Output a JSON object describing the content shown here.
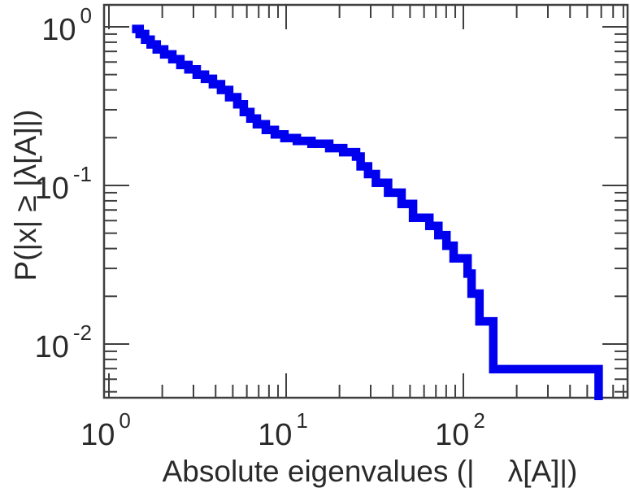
{
  "chart_data": {
    "type": "line",
    "subtype": "empirical-ccdf-step",
    "title": "",
    "xlabel": "Absolute eigenvalues (|    λ[A]|)",
    "ylabel": "P(|x| ≥ |λ[A]|)",
    "xscale": "log",
    "yscale": "log",
    "xlim": [
      0.94,
      852
    ],
    "ylim": [
      0.0047,
      1.41
    ],
    "grid": false,
    "legend": null,
    "background": "#ffffff",
    "line_color": "#0000ee",
    "line_width": 10.5,
    "axis_color": "#3f3f3f",
    "text_color": "#2a2a2a",
    "x_major_ticks": [
      {
        "value": 1,
        "base": "10",
        "exp": "0"
      },
      {
        "value": 10,
        "base": "10",
        "exp": "1"
      },
      {
        "value": 100,
        "base": "10",
        "exp": "2"
      }
    ],
    "x_minor_ticks": [
      2,
      3,
      4,
      5,
      6,
      7,
      8,
      9,
      20,
      30,
      40,
      50,
      60,
      70,
      80,
      90,
      200,
      300,
      400,
      500,
      600,
      700,
      800
    ],
    "y_major_ticks": [
      {
        "value": 1,
        "base": "10",
        "exp": "0"
      },
      {
        "value": 0.1,
        "base": "10",
        "exp": "-1"
      },
      {
        "value": 0.01,
        "base": "10",
        "exp": "-2"
      }
    ],
    "y_minor_ticks": [
      0.9,
      0.8,
      0.7,
      0.6,
      0.5,
      0.4,
      0.3,
      0.2,
      0.09,
      0.08,
      0.07,
      0.06,
      0.05,
      0.04,
      0.03,
      0.02,
      0.009,
      0.008,
      0.007,
      0.006,
      0.005
    ],
    "steps": [
      [
        1.35,
        0.97
      ],
      [
        1.49,
        0.9
      ],
      [
        1.6,
        0.83
      ],
      [
        1.72,
        0.775
      ],
      [
        1.86,
        0.72
      ],
      [
        2.05,
        0.67
      ],
      [
        2.28,
        0.625
      ],
      [
        2.53,
        0.575
      ],
      [
        2.81,
        0.54
      ],
      [
        3.13,
        0.5
      ],
      [
        3.48,
        0.47
      ],
      [
        3.86,
        0.435
      ],
      [
        4.29,
        0.4
      ],
      [
        4.77,
        0.36
      ],
      [
        5.3,
        0.325
      ],
      [
        5.77,
        0.29
      ],
      [
        6.28,
        0.264
      ],
      [
        6.84,
        0.243
      ],
      [
        7.68,
        0.224
      ],
      [
        8.63,
        0.21
      ],
      [
        9.78,
        0.199
      ],
      [
        11.5,
        0.191
      ],
      [
        13.9,
        0.183
      ],
      [
        17.5,
        0.172
      ],
      [
        21.0,
        0.162
      ],
      [
        24.8,
        0.152
      ],
      [
        26.3,
        0.132
      ],
      [
        29.0,
        0.118
      ],
      [
        32.1,
        0.104
      ],
      [
        37.6,
        0.09
      ],
      [
        44.8,
        0.0764
      ],
      [
        52.0,
        0.0625
      ],
      [
        64.3,
        0.0556
      ],
      [
        72.3,
        0.0486
      ],
      [
        80.3,
        0.0417
      ],
      [
        88.1,
        0.0347
      ],
      [
        105.6,
        0.0278
      ],
      [
        111.2,
        0.0208
      ],
      [
        123.3,
        0.0139
      ],
      [
        147.5,
        0.00694
      ]
    ],
    "end_x": 580
  }
}
